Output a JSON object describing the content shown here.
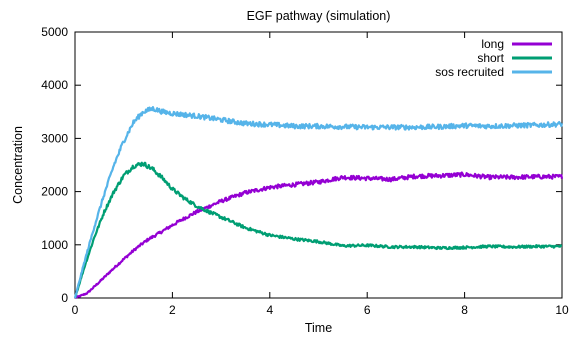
{
  "chart_data": {
    "type": "line",
    "title": "EGF pathway (simulation)",
    "xlabel": "Time",
    "ylabel": "Concentration",
    "xlim": [
      0,
      10
    ],
    "ylim": [
      0,
      5000
    ],
    "xticks": [
      0,
      2,
      4,
      6,
      8,
      10
    ],
    "yticks": [
      0,
      1000,
      2000,
      3000,
      4000,
      5000
    ],
    "grid": false,
    "legend_position": "top-right",
    "noisy": true,
    "series": [
      {
        "name": "long",
        "color": "#9400D3",
        "x": [
          0,
          0.25,
          0.5,
          0.75,
          1.0,
          1.25,
          1.5,
          1.75,
          2.0,
          2.25,
          2.5,
          2.75,
          3.0,
          3.5,
          4.0,
          4.5,
          5.0,
          5.5,
          6.0,
          6.5,
          7.0,
          7.5,
          8.0,
          8.5,
          9.0,
          9.5,
          10.0
        ],
        "y": [
          0,
          90,
          300,
          520,
          730,
          930,
          1100,
          1230,
          1370,
          1500,
          1620,
          1720,
          1820,
          1980,
          2080,
          2130,
          2180,
          2270,
          2250,
          2230,
          2290,
          2300,
          2320,
          2270,
          2270,
          2280,
          2280
        ]
      },
      {
        "name": "short",
        "color": "#009E73",
        "x": [
          0,
          0.2,
          0.4,
          0.6,
          0.8,
          1.0,
          1.2,
          1.4,
          1.6,
          1.8,
          2.0,
          2.25,
          2.5,
          2.75,
          3.0,
          3.5,
          4.0,
          4.5,
          5.0,
          5.5,
          6.0,
          6.5,
          7.0,
          7.5,
          8.0,
          8.5,
          9.0,
          9.5,
          10.0
        ],
        "y": [
          0,
          600,
          1150,
          1620,
          2000,
          2300,
          2480,
          2530,
          2420,
          2250,
          2050,
          1870,
          1730,
          1620,
          1520,
          1320,
          1180,
          1110,
          1060,
          980,
          990,
          960,
          960,
          940,
          950,
          970,
          960,
          970,
          970
        ]
      },
      {
        "name": "sos recruited",
        "color": "#56B4E9",
        "x": [
          0,
          0.2,
          0.4,
          0.6,
          0.8,
          1.0,
          1.2,
          1.4,
          1.6,
          1.8,
          2.0,
          2.5,
          3.0,
          3.5,
          4.0,
          4.5,
          5.0,
          5.5,
          6.0,
          6.5,
          7.0,
          7.5,
          8.0,
          8.5,
          9.0,
          9.5,
          10.0
        ],
        "y": [
          0,
          700,
          1350,
          1950,
          2500,
          2950,
          3300,
          3500,
          3560,
          3500,
          3470,
          3420,
          3350,
          3280,
          3260,
          3230,
          3230,
          3220,
          3210,
          3210,
          3210,
          3220,
          3240,
          3230,
          3240,
          3250,
          3270
        ]
      }
    ]
  }
}
